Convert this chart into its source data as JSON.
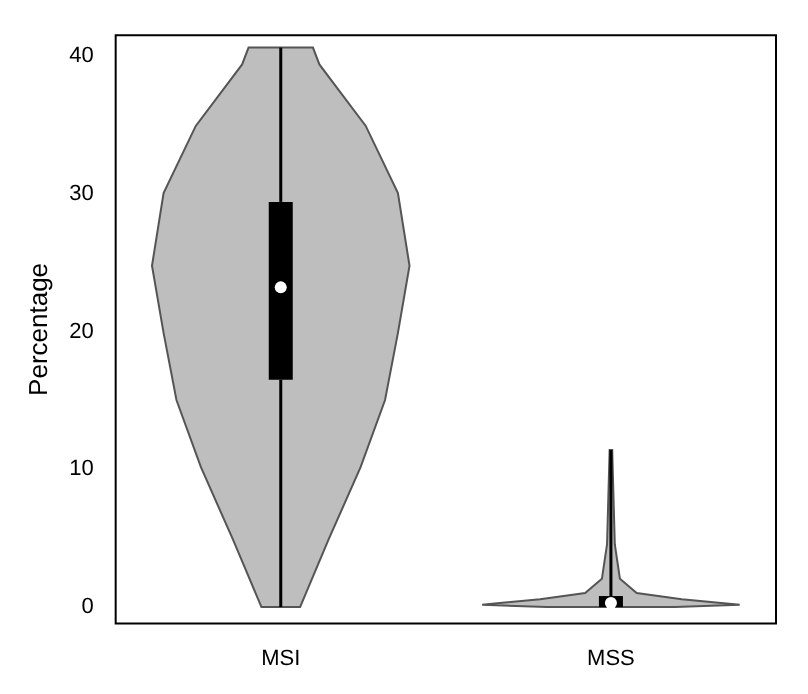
{
  "chart_data": {
    "type": "box",
    "ylabel": "Percentage",
    "categories": [
      "MSI",
      "MSS"
    ],
    "boxes": [
      {
        "low": 0,
        "q1": 16.5,
        "median": 23.2,
        "q3": 29.4,
        "high": 40.6
      },
      {
        "low": 0,
        "q1": 0,
        "median": 0.3,
        "q3": 0.8,
        "high": 11.4
      }
    ],
    "ylim": [
      -1.2,
      41.5
    ],
    "yticks": [
      0,
      10,
      20,
      30,
      40
    ]
  }
}
